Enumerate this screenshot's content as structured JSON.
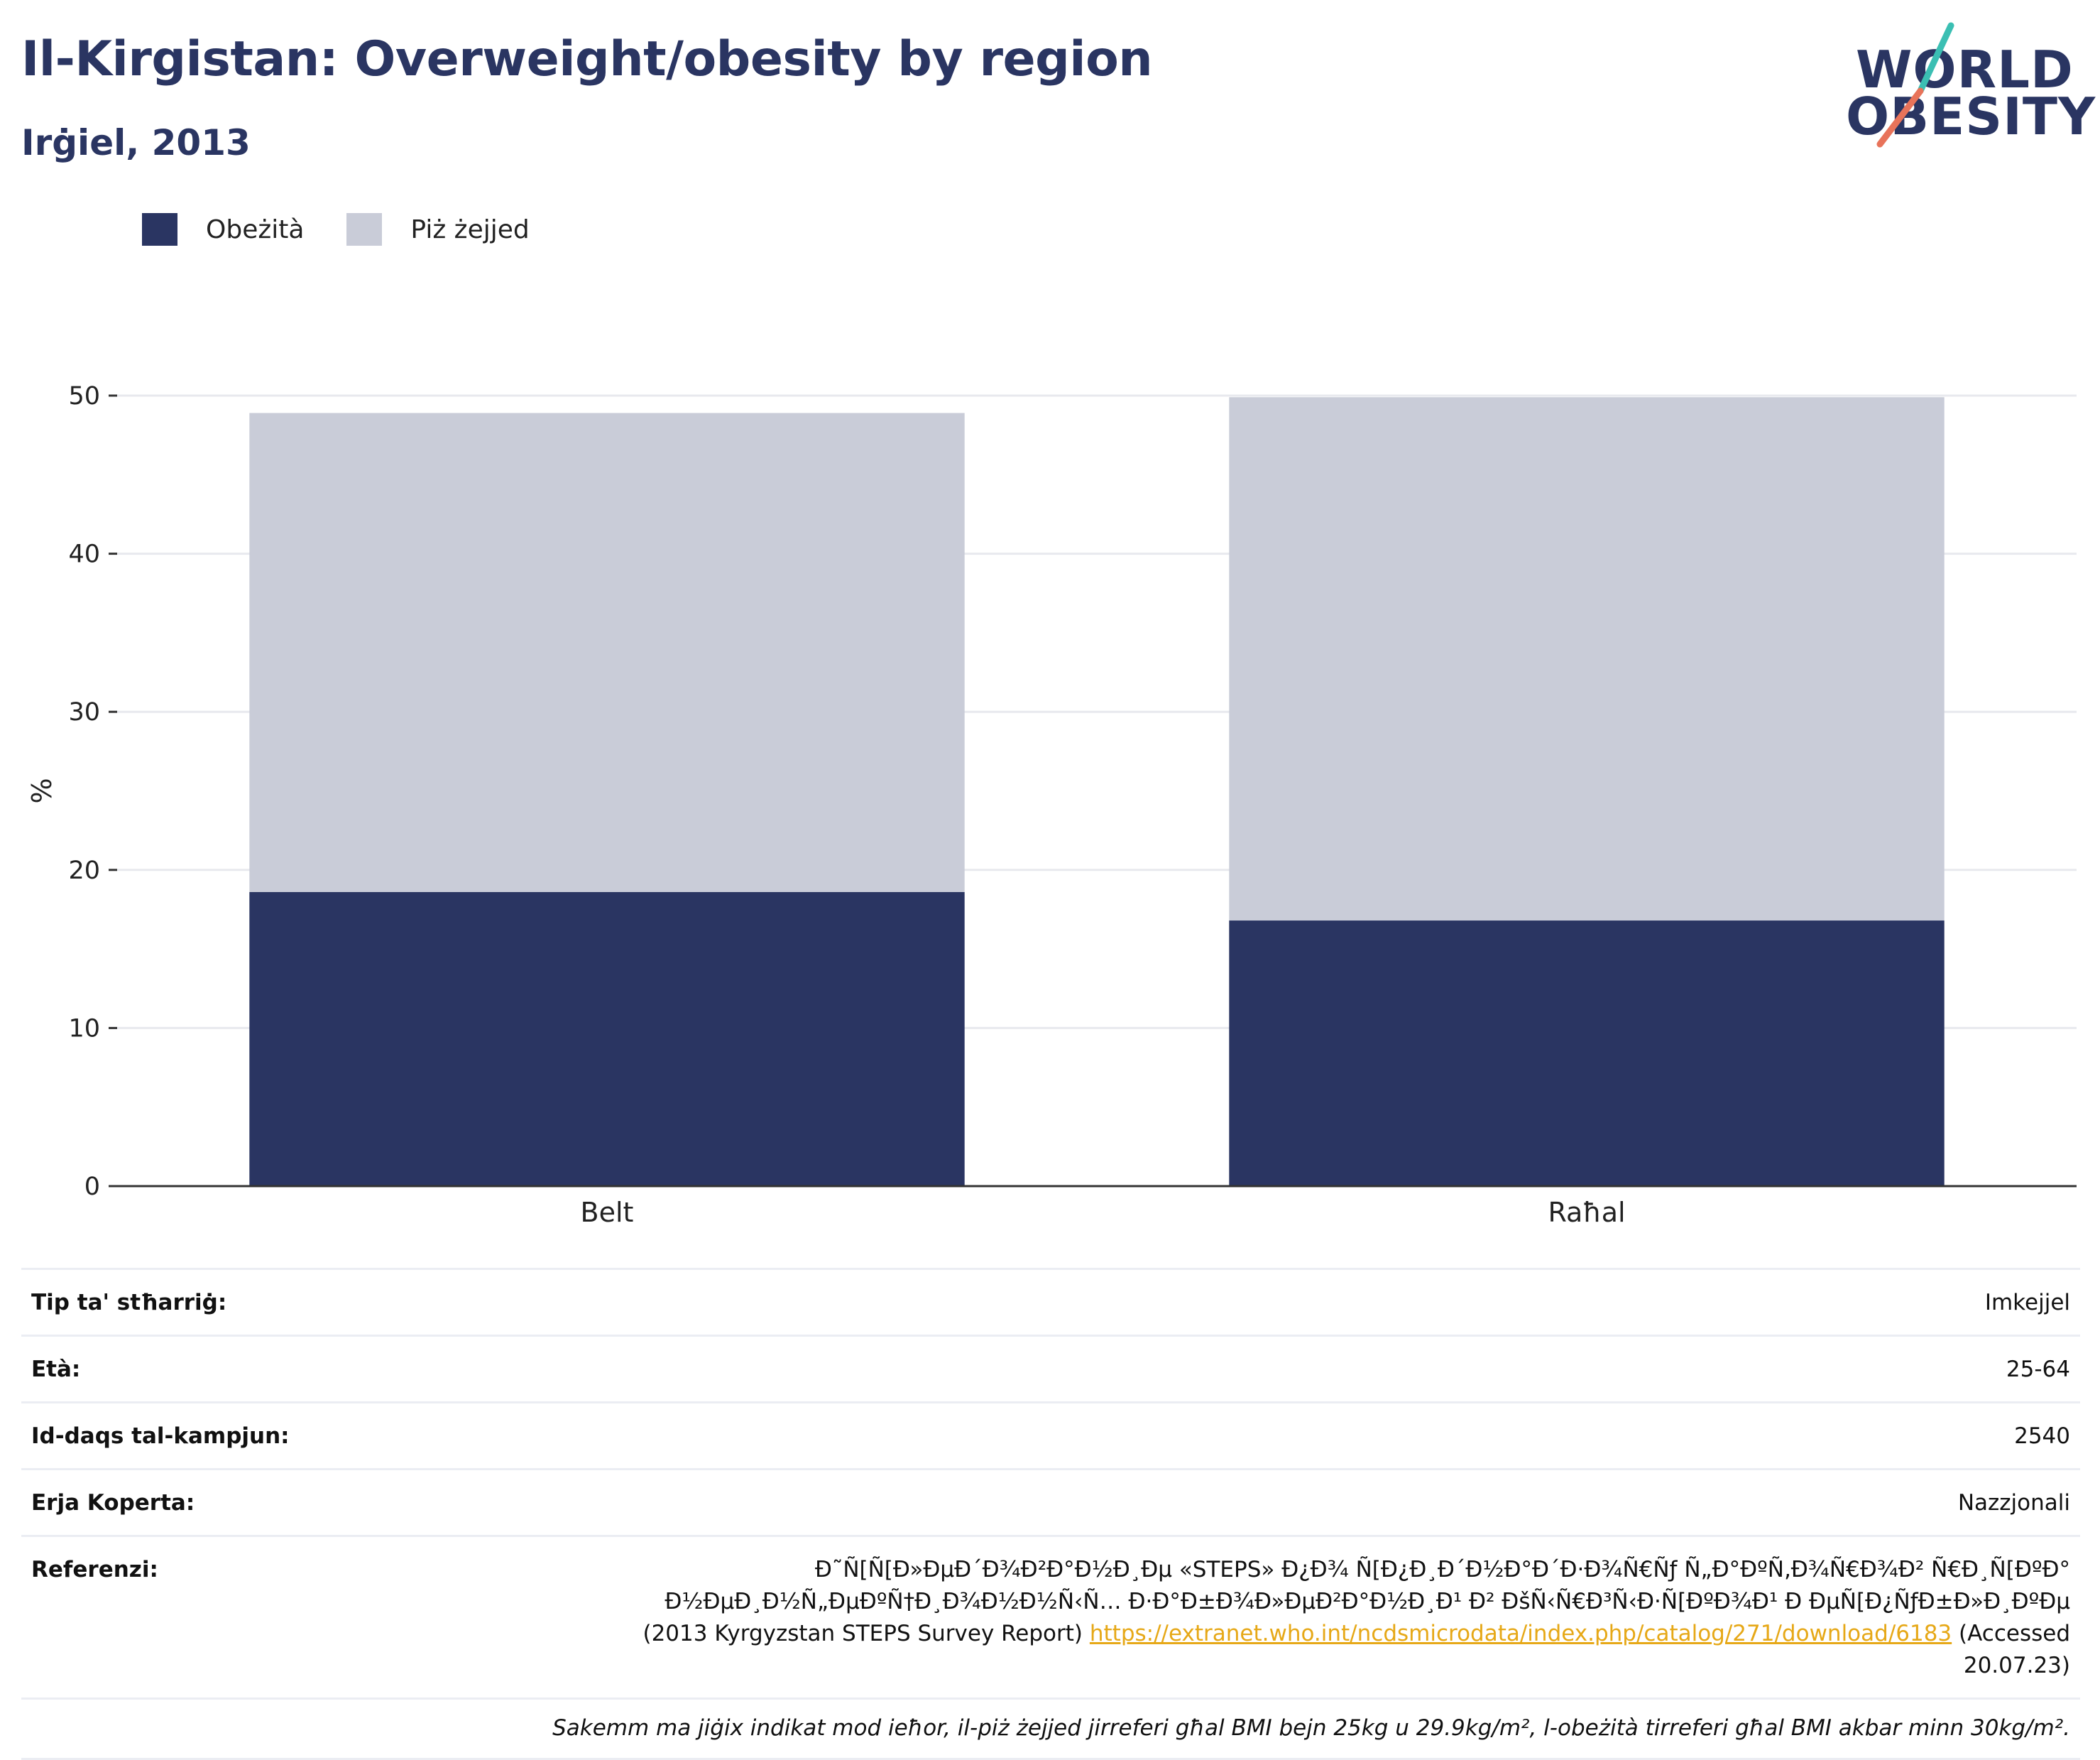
{
  "header": {
    "title": "Il-Kirgistan: Overweight/obesity by region",
    "subtitle": "Irġiel, 2013"
  },
  "logo": {
    "line1": "WORLD",
    "line2": "OBESITY"
  },
  "colors": {
    "obesity": "#2a3562",
    "overweight": "#c9ccd8",
    "title": "#2a3562",
    "link": "#e6a817"
  },
  "legend": [
    {
      "label": "Obeżità",
      "color": "#2a3562"
    },
    {
      "label": "Piż żejjed",
      "color": "#c9ccd8"
    }
  ],
  "chart_data": {
    "type": "bar",
    "stacked": true,
    "categories": [
      "Belt",
      "Raħal"
    ],
    "series": [
      {
        "name": "Obeżità",
        "values": [
          18.6,
          16.8
        ]
      },
      {
        "name": "Piż żejjed",
        "values": [
          30.3,
          33.1
        ]
      }
    ],
    "ylabel": "%",
    "ylim": [
      0,
      50
    ],
    "yticks": [
      0,
      10,
      20,
      30,
      40,
      50
    ],
    "grid": true,
    "legend_position": "top-left"
  },
  "info": {
    "rows": [
      {
        "key": "Tip ta' stħarriġ:",
        "value": "Imkejjel"
      },
      {
        "key": "Età:",
        "value": "25-64"
      },
      {
        "key": "Id-daqs tal-kampjun:",
        "value": "2540"
      },
      {
        "key": "Erja Koperta:",
        "value": "Nazzjonali"
      }
    ],
    "reference": {
      "key": "Referenzi:",
      "text_before": "Ð˜Ñ[Ñ[Ð»ÐµÐ´Ð¾Ð²Ð°Ð½Ð¸Ðµ «STEPS» Ð¿Ð¾ Ñ[Ð¿Ð¸Ð´Ð½Ð°Ð´Ð·Ð¾Ñ€Ñƒ Ñ„Ð°ÐºÑ‚Ð¾Ñ€Ð¾Ð² Ñ€Ð¸Ñ[ÐºÐ° Ð½ÐµÐ¸Ð½Ñ„ÐµÐºÑ†Ð¸Ð¾Ð½Ð½Ñ‹Ñ… Ð·Ð°Ð±Ð¾Ð»ÐµÐ²Ð°Ð½Ð¸Ð¹ Ð² ÐšÑ‹Ñ€Ð³Ñ‹Ð·Ñ[ÐºÐ¾Ð¹ Ð ÐµÑ[Ð¿ÑƒÐ±Ð»Ð¸ÐºÐµ (2013 Kyrgyzstan STEPS Survey Report)",
      "link": "https://extranet.who.int/ncdsmicrodata/index.php/catalog/271/download/6183",
      "text_after": "(Accessed 20.07.23)"
    },
    "note": "Sakemm ma jiġix indikat mod ieħor, il-piż żejjed jirreferi għal BMI bejn 25kg u 29.9kg/m², l-obeżità tirreferi għal BMI akbar minn 30kg/m²."
  }
}
